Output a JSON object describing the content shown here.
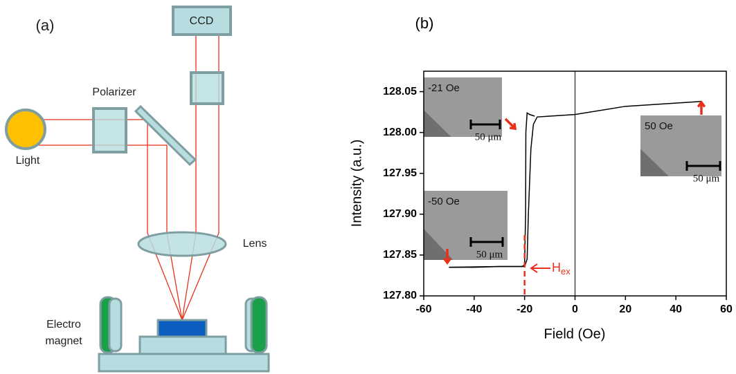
{
  "diagram": {
    "panel_label": "(a)",
    "camera": "CCD",
    "polarizer": "Polarizer",
    "light": "Light",
    "lens": "Lens",
    "magnet_label": [
      "Electro",
      "magnet"
    ]
  },
  "chart_data": {
    "type": "line",
    "panel_label": "(b)",
    "x_label": "Field (Oe)",
    "y_label": "Intensity (a.u.)",
    "xlim": [
      -60,
      60
    ],
    "xticks": [
      -60,
      -40,
      -20,
      0,
      20,
      40,
      60
    ],
    "ylim": [
      127.8,
      128.075
    ],
    "yticks": [
      {
        "value": 127.8,
        "label": "127.80"
      },
      127.85,
      {
        "value": 127.9,
        "label": "127.90"
      },
      127.95,
      {
        "value": 128.0,
        "label": "128.00"
      },
      128.05
    ],
    "series": [
      {
        "color": "#000000",
        "x": [
          -50,
          -40,
          -30,
          -21,
          -20,
          -19.6,
          -19.5,
          -19,
          -18,
          -16
        ],
        "values": [
          127.835,
          127.835,
          127.836,
          127.836,
          127.838,
          127.9,
          128.0,
          128.024,
          128.022,
          128.02
        ]
      },
      {
        "color": "#000000",
        "x": [
          50,
          40,
          20,
          0,
          -10,
          -15,
          -16.5,
          -17.5,
          -18.5,
          -19,
          -20,
          -30,
          -50
        ],
        "values": [
          128.038,
          128.036,
          128.032,
          128.022,
          128.02,
          128.019,
          128.01,
          127.98,
          127.9,
          127.845,
          127.836,
          127.836,
          127.835
        ]
      }
    ],
    "annotations": [
      {
        "text": "H",
        "subscript": "ex",
        "x": -20,
        "color": "#e8311a"
      }
    ],
    "insets": [
      {
        "label": "-21 Oe",
        "scale": "50 μm"
      },
      {
        "label": "-50 Oe",
        "scale": "50 μm"
      },
      {
        "label": "50 Oe",
        "scale": "50 μm"
      }
    ]
  }
}
